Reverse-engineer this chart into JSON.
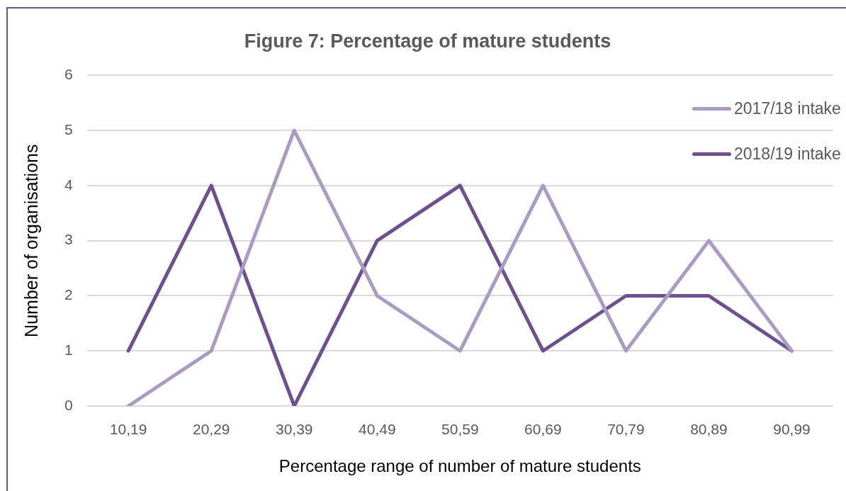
{
  "chart_data": {
    "type": "line",
    "title": "Figure 7: Percentage of mature students",
    "xlabel": "Percentage range of number of mature students",
    "ylabel": "Number of organisations",
    "categories": [
      "10,19",
      "20,29",
      "30,39",
      "40,49",
      "50,59",
      "60,69",
      "70,79",
      "80,89",
      "90,99"
    ],
    "series": [
      {
        "name": "2017/18 intake",
        "color": "#a99bc2",
        "values": [
          0,
          1,
          5,
          2,
          1,
          4,
          1,
          3,
          1
        ]
      },
      {
        "name": "2018/19 intake",
        "color": "#6e5090",
        "values": [
          1,
          4,
          0,
          3,
          4,
          1,
          2,
          2,
          1
        ]
      }
    ],
    "ylim": [
      0,
      6
    ],
    "yticks": [
      0,
      1,
      2,
      3,
      4,
      5,
      6
    ],
    "grid": "y",
    "legend": "top right",
    "marker": "none",
    "line_style": "solid"
  }
}
